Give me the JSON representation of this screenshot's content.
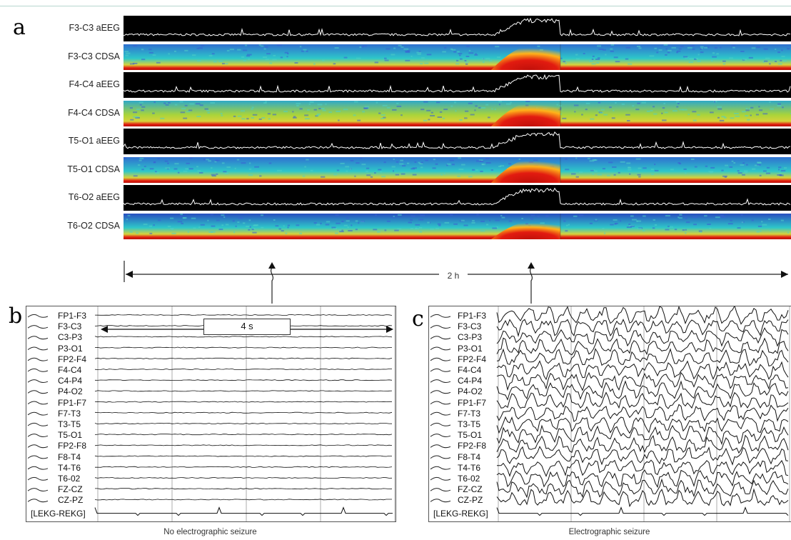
{
  "panels": {
    "a": {
      "letter": "a",
      "strips": [
        {
          "label": "F3-C3 aEEG",
          "kind": "aeeg"
        },
        {
          "label": "F3-C3 CDSA",
          "kind": "cdsa",
          "tone": "blue"
        },
        {
          "label": "F4-C4 aEEG",
          "kind": "aeeg"
        },
        {
          "label": "F4-C4 CDSA",
          "kind": "cdsa",
          "tone": "green"
        },
        {
          "label": "T5-O1 aEEG",
          "kind": "aeeg"
        },
        {
          "label": "T5-O1 CDSA",
          "kind": "cdsa",
          "tone": "blue"
        },
        {
          "label": "T6-O2 aEEG",
          "kind": "aeeg"
        },
        {
          "label": "T6-O2 CDSA",
          "kind": "cdsa",
          "tone": "deepblue"
        }
      ],
      "duration_label": "2 h"
    },
    "b": {
      "letter": "b",
      "time_label": "4 s",
      "caption": "No electrographic seizure"
    },
    "c": {
      "letter": "c",
      "caption": "Electrographic seizure"
    }
  },
  "channels": [
    "FP1-F3",
    "F3-C3",
    "C3-P3",
    "P3-O1",
    "FP2-F4",
    "F4-C4",
    "C4-P4",
    "P4-O2",
    "FP1-F7",
    "F7-T3",
    "T3-T5",
    "T5-O1",
    "FP2-F8",
    "F8-T4",
    "T4-T6",
    "T6-02",
    "FZ-CZ",
    "CZ-PZ"
  ],
  "ekg_label": "[LEKG-REKG]",
  "colors": {
    "aeeg_background": "#000000",
    "aeeg_trace": "#ffffff",
    "cdsa_low": "#2a4fc0",
    "cdsa_mid": "#2ec7c9",
    "cdsa_green": "#a9d43a",
    "cdsa_seizure": "#e21b10",
    "cdsa_seizure_outer": "#ffb21a"
  }
}
